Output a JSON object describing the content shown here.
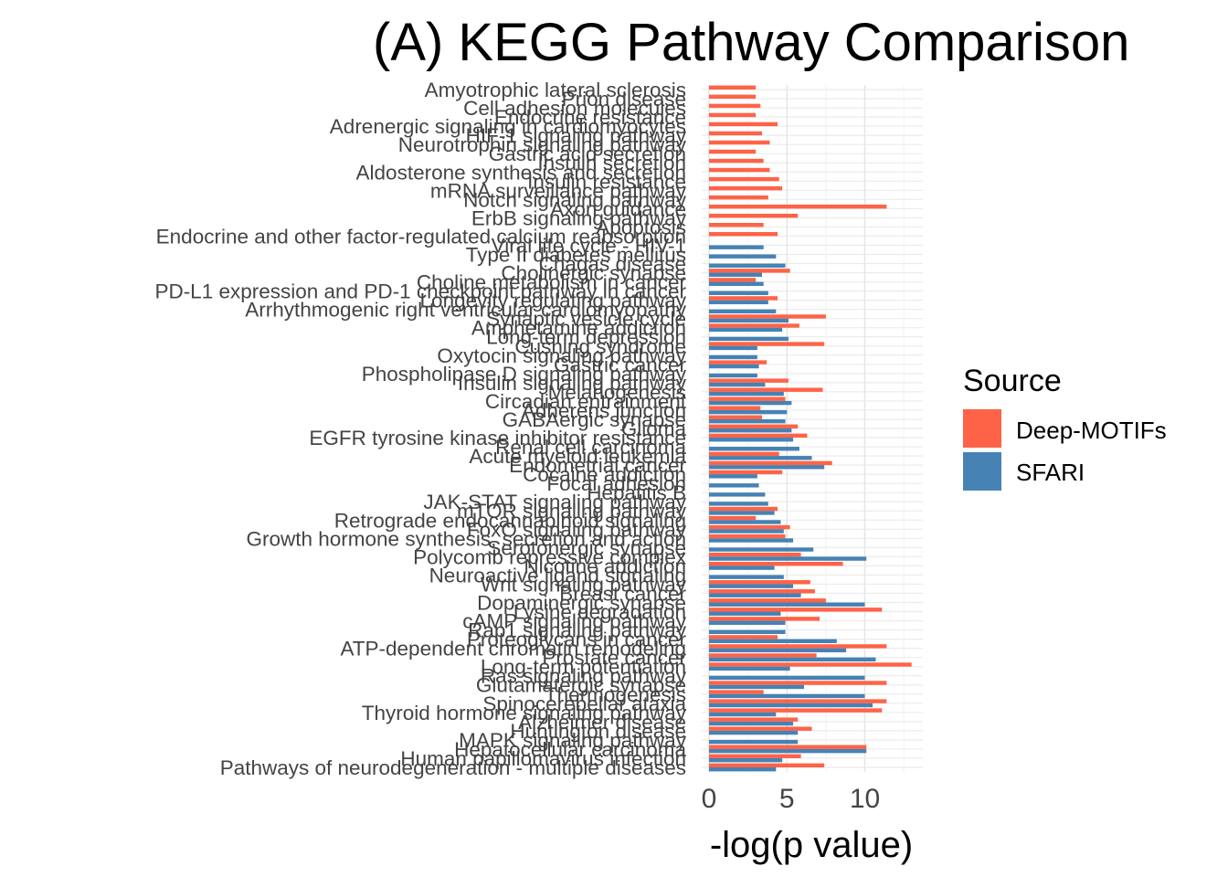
{
  "chart_data": {
    "type": "bar",
    "orientation": "horizontal",
    "title": "(A) KEGG Pathway Comparison",
    "xlabel": "-log(p value)",
    "ylabel": "",
    "xlim": [
      0,
      13.5
    ],
    "x_ticks": [
      0,
      5,
      10
    ],
    "grid": true,
    "legend": {
      "title": "Source",
      "position": "right",
      "entries": [
        {
          "name": "Deep-MOTIFs",
          "color": "#FF6347"
        },
        {
          "name": "SFARI",
          "color": "#4682B4"
        }
      ]
    },
    "categories": [
      "Amyotrophic lateral sclerosis",
      "Prion disease",
      "Cell adhesion molecules",
      "Endocrine resistance",
      "Adrenergic signaling in cardiomyocytes",
      "HIF-1 signaling pathway",
      "Neurotrophin signaling pathway",
      "Gastric acid secretion",
      "Insulin secretion",
      "Aldosterone synthesis and secretion",
      "Insulin resistance",
      "mRNA surveillance pathway",
      "Notch signaling pathway",
      "Axon guidance",
      "ErbB signaling pathway",
      "Apoptosis",
      "Endocrine and other factor-regulated calcium reabsorption",
      "Viral life cycle - HIV-1",
      "Type II diabetes mellitus",
      "Chagas disease",
      "Cholinergic synapse",
      "Choline metabolism in cancer",
      "PD-L1 expression and PD-1 checkpoint pathway in cancer",
      "Longevity regulating pathway",
      "Arrhythmogenic right ventricular cardiomyopathy",
      "Synaptic vesicle cycle",
      "Amphetamine addiction",
      "Long-term depression",
      "Cushing syndrome",
      "Oxytocin signaling pathway",
      "Gastric cancer",
      "Phospholipase D signaling pathway",
      "Insulin signaling pathway",
      "Melanogenesis",
      "Circadian entrainment",
      "Adherens junction",
      "GABAergic synapse",
      "Glioma",
      "EGFR tyrosine kinase inhibitor resistance",
      "Renal cell carcinoma",
      "Acute myeloid leukemia",
      "Endometrial cancer",
      "Cocaine addiction",
      "Focal adhesion",
      "Hepatitis B",
      "JAK-STAT signaling pathway",
      "mTOR signaling pathway",
      "Retrograde endocannabinoid signaling",
      "FoxO signaling pathway",
      "Growth hormone synthesis, secretion and action",
      "Serotonergic synapse",
      "Polycomb repressive complex",
      "Nicotine addiction",
      "Neuroactive ligand signaling",
      "Wnt signaling pathway",
      "Breast cancer",
      "Dopaminergic synapse",
      "Lysine degradation",
      "cAMP signaling pathway",
      "Rap1 signaling pathway",
      "Proteoglycans in cancer",
      "ATP-dependent chromatin remodeling",
      "Prostate cancer",
      "Long-term potentiation",
      "Ras signaling pathway",
      "Glutamatergic synapse",
      "Thermogenesis",
      "Spinocerebellar ataxia",
      "Thyroid hormone signaling pathway",
      "Alzheimer disease",
      "Huntington disease",
      "MAPK signaling pathway",
      "Hepatocellular carcinoma",
      "Human papillomavirus infection",
      "Pathways of neurodegeneration - multiple diseases"
    ],
    "series": [
      {
        "name": "Deep-MOTIFs",
        "values": [
          3.0,
          3.0,
          3.3,
          3.0,
          4.4,
          3.4,
          3.9,
          3.0,
          3.5,
          3.9,
          4.5,
          4.7,
          3.8,
          11.4,
          5.7,
          3.5,
          4.4,
          null,
          null,
          null,
          5.2,
          3.0,
          null,
          4.4,
          null,
          7.5,
          5.8,
          null,
          7.4,
          null,
          3.7,
          null,
          5.1,
          7.3,
          4.9,
          3.3,
          3.4,
          5.7,
          6.3,
          null,
          4.5,
          7.9,
          4.7,
          null,
          null,
          null,
          4.4,
          3.0,
          5.2,
          4.9,
          null,
          5.9,
          8.6,
          null,
          6.5,
          6.8,
          7.5,
          11.1,
          7.1,
          null,
          4.4,
          11.4,
          6.9,
          13.0,
          null,
          11.4,
          3.5,
          11.4,
          11.1,
          5.7,
          6.6,
          null,
          10.1,
          5.9,
          7.4
        ]
      },
      {
        "name": "SFARI",
        "values": [
          null,
          null,
          null,
          null,
          null,
          null,
          null,
          null,
          null,
          null,
          null,
          null,
          null,
          null,
          null,
          null,
          null,
          3.5,
          4.3,
          4.9,
          3.4,
          3.5,
          3.8,
          3.8,
          4.3,
          5.1,
          4.7,
          5.1,
          3.1,
          3.1,
          3.2,
          3.1,
          3.6,
          4.8,
          5.3,
          5.0,
          4.9,
          5.3,
          5.4,
          5.8,
          6.6,
          7.4,
          3.1,
          3.2,
          3.6,
          3.8,
          4.2,
          4.6,
          4.8,
          5.4,
          6.7,
          10.1,
          4.2,
          4.8,
          5.4,
          5.9,
          10.0,
          4.6,
          4.9,
          4.9,
          8.2,
          8.8,
          10.7,
          5.2,
          10.0,
          6.1,
          10.0,
          10.5,
          4.3,
          5.4,
          5.7,
          5.7,
          10.1,
          4.7,
          4.3
        ]
      }
    ]
  }
}
